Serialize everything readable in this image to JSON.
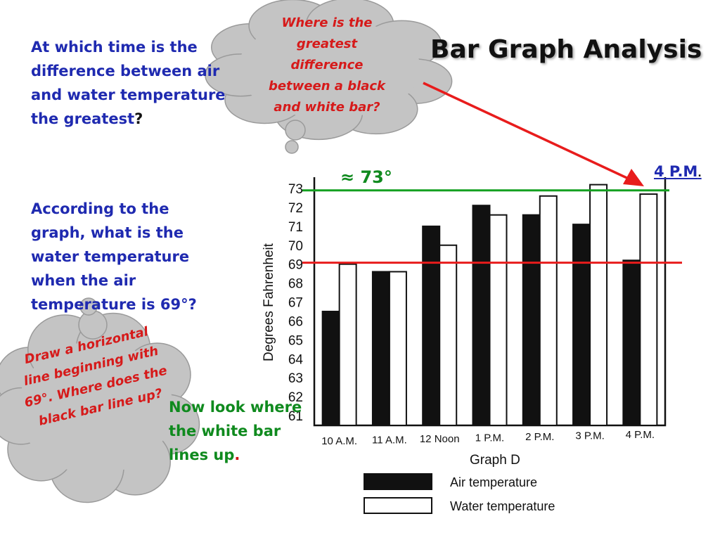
{
  "slide": {
    "title": "Bar Graph Analysis",
    "question1": "At which time is the difference between air and water temperature the greatest",
    "question1_end": "?",
    "question2": "According  to the graph, what is the water temperature when the air temperature is 69°?",
    "note": "Now look where the white bar lines up",
    "note_end": ".",
    "bubble1": "Where is the greatest difference between a black and white bar?",
    "bubble2": "Draw a horizontal line beginning with 69°.  Where does the black bar line up?",
    "answer_time": "4 P.M",
    "answer_time_end": ".",
    "answer_temp": "≈ 73°"
  },
  "colors": {
    "question": "#1f2ab0",
    "note": "#0f8a1e",
    "bubble_text": "#d61a1a",
    "bubble_fill": "#c4c4c4",
    "green_line": "#14a020",
    "red_line": "#e81c1c",
    "air_bar": "#111111",
    "water_bar": "#ffffff"
  },
  "chart_data": {
    "type": "bar",
    "title": "Graph D",
    "ylabel": "Degrees Fahrenheit",
    "xlabel": "",
    "categories": [
      "10 A.M.",
      "11 A.M.",
      "12 Noon",
      "1 P.M.",
      "2 P.M.",
      "3 P.M.",
      "4 P.M."
    ],
    "yticks": [
      61,
      62,
      63,
      64,
      65,
      66,
      67,
      68,
      69,
      70,
      71,
      72,
      73
    ],
    "ylim": [
      60.5,
      73.5
    ],
    "grid": false,
    "legend_position": "bottom",
    "series": [
      {
        "name": "Air temperature",
        "values": [
          66.5,
          68.6,
          71.0,
          72.1,
          71.6,
          71.1,
          69.2
        ]
      },
      {
        "name": "Water temperature",
        "values": [
          69.0,
          68.6,
          70.0,
          71.6,
          72.6,
          73.2,
          72.7
        ]
      }
    ],
    "reference_lines": [
      {
        "label": "≈ 73°",
        "value": 72.9,
        "color": "green"
      },
      {
        "label": "69°",
        "value": 69.0,
        "color": "red"
      }
    ]
  }
}
